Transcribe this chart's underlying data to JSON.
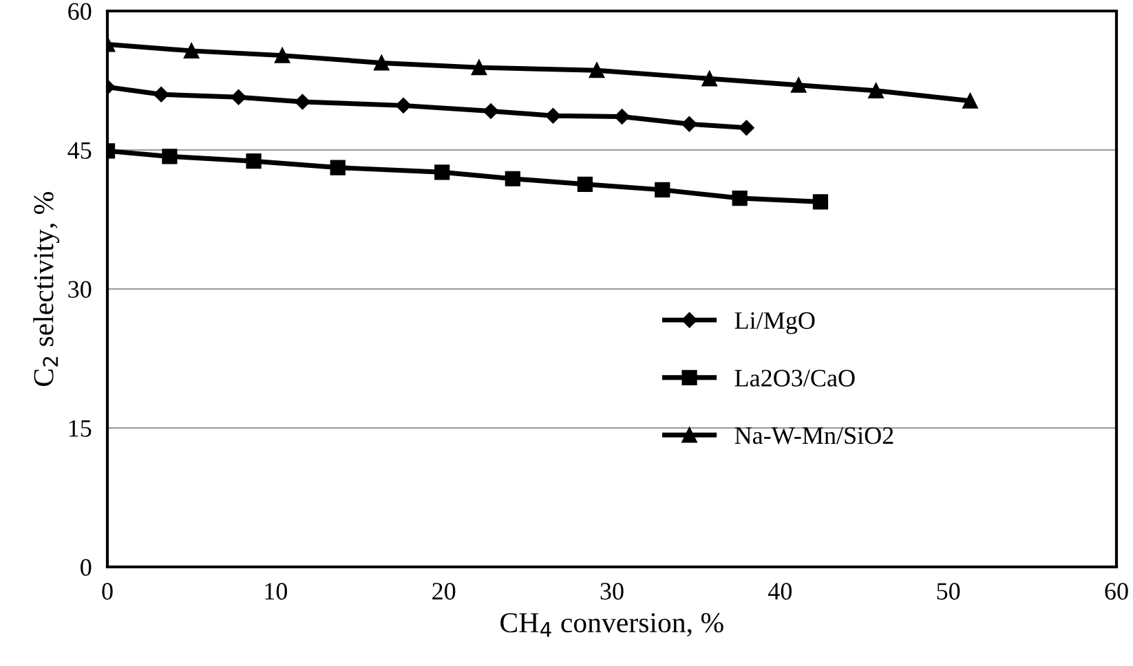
{
  "chart_data": {
    "type": "line",
    "xlabel": "CH$_{4}$ conversion, %",
    "ylabel": "C$_{2}$ selectivity, %",
    "xlim": [
      0,
      60
    ],
    "xticks": [
      0,
      10,
      20,
      30,
      40,
      50,
      60
    ],
    "ylim": [
      0,
      60
    ],
    "yticks": [
      0,
      15,
      30,
      45,
      60
    ],
    "grid": "y",
    "legend": "right",
    "line_style": "solid",
    "series": [
      {
        "name": "Li/MgO",
        "color": "#000000",
        "marker": "diamond",
        "x": [
          0,
          3.2,
          7.8,
          11.6,
          17.6,
          22.8,
          26.5,
          30.6,
          34.6,
          38.0
        ],
        "values": [
          51.8,
          51.0,
          50.7,
          50.2,
          49.8,
          49.2,
          48.7,
          48.6,
          47.8,
          47.4
        ]
      },
      {
        "name": "La2O3/CaO",
        "color": "#000000",
        "marker": "square",
        "x": [
          0,
          3.7,
          8.7,
          13.7,
          19.9,
          24.1,
          28.4,
          33.0,
          37.6,
          42.4
        ],
        "values": [
          44.9,
          44.3,
          43.8,
          43.1,
          42.6,
          41.9,
          41.3,
          40.7,
          39.8,
          39.4
        ]
      },
      {
        "name": "Na-W-Mn/SiO2",
        "color": "#000000",
        "marker": "triangle",
        "x": [
          0,
          5.0,
          10.4,
          16.3,
          22.1,
          29.1,
          35.8,
          41.1,
          45.7,
          51.3
        ],
        "values": [
          56.4,
          55.7,
          55.2,
          54.4,
          53.9,
          53.6,
          52.7,
          52.0,
          51.4,
          50.3
        ]
      }
    ]
  }
}
